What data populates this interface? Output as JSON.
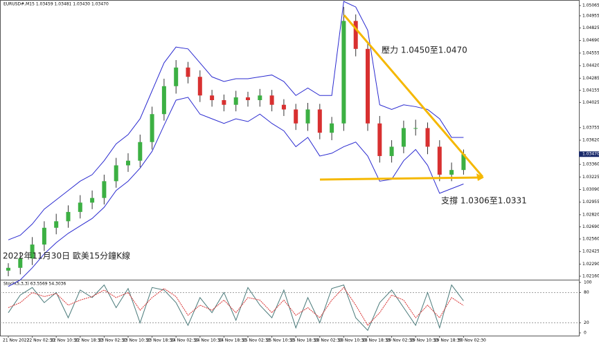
{
  "chart_data": [
    {
      "type": "candlestick",
      "title": "EURUSD#,M15 1.03459 1.03481 1.03430 1.03470",
      "caption": "2022年11月30日 歐美15分鐘K線",
      "annotations": [
        "壓力 1.0450至1.0470",
        "支撐 1.0306至1.0331"
      ],
      "categories": [
        "21 Nov 2022",
        null,
        "22 Nov 02:30",
        null,
        "22 Nov 10:30",
        null,
        "22 Nov 18:30",
        null,
        "23 Nov 02:30",
        null,
        "23 Nov 10:30",
        null,
        "23 Nov 18:30",
        null,
        "24 Nov 02:30",
        null,
        "24 Nov 10:30",
        null,
        "24 Nov 18:30",
        null,
        "25 Nov 02:30",
        null,
        "25 Nov 10:30",
        null,
        "25 Nov 18:30",
        null,
        "28 Nov 02:30",
        null,
        "28 Nov 10:30",
        null,
        "28 Nov 18:30",
        null,
        "29 Nov 02:30",
        null,
        "29 Nov 10:30",
        null,
        "29 Nov 18:30",
        null,
        "30 Nov 02:30"
      ],
      "open": [
        1.0222,
        1.0225,
        1.0235,
        1.025,
        1.0268,
        1.0275,
        1.0285,
        1.0295,
        1.03,
        1.0318,
        1.0335,
        1.034,
        1.036,
        1.039,
        1.042,
        1.044,
        1.043,
        1.041,
        1.0405,
        1.04,
        1.0408,
        1.0405,
        1.041,
        1.04,
        1.0395,
        1.038,
        1.0395,
        1.037,
        1.038,
        1.049,
        1.046,
        1.038,
        1.0345,
        1.0355,
        1.0375,
        1.0375,
        1.0355,
        1.0325,
        1.033
      ],
      "high": [
        1.023,
        1.0242,
        1.0258,
        1.0275,
        1.0283,
        1.0292,
        1.0303,
        1.0308,
        1.0325,
        1.0343,
        1.0348,
        1.0368,
        1.0398,
        1.0428,
        1.0448,
        1.0446,
        1.0437,
        1.0416,
        1.0411,
        1.0415,
        1.0414,
        1.0417,
        1.0416,
        1.0406,
        1.0401,
        1.0402,
        1.0401,
        1.0387,
        1.0505,
        1.0497,
        1.0466,
        1.0388,
        1.0362,
        1.0383,
        1.0384,
        1.0381,
        1.0362,
        1.0338,
        1.0352
      ],
      "low": [
        1.0216,
        1.0218,
        1.0228,
        1.0243,
        1.0261,
        1.0268,
        1.0278,
        1.0288,
        1.0293,
        1.0311,
        1.0328,
        1.0333,
        1.0352,
        1.0383,
        1.0412,
        1.0423,
        1.0403,
        1.0398,
        1.0393,
        1.0393,
        1.0398,
        1.0398,
        1.0393,
        1.0388,
        1.0373,
        1.0372,
        1.0363,
        1.0362,
        1.0372,
        1.0452,
        1.0372,
        1.0338,
        1.0338,
        1.0348,
        1.0367,
        1.0347,
        1.0318,
        1.0318,
        1.0325
      ],
      "close": [
        1.0225,
        1.0235,
        1.025,
        1.0268,
        1.0275,
        1.0285,
        1.0295,
        1.03,
        1.0318,
        1.0335,
        1.034,
        1.036,
        1.039,
        1.042,
        1.044,
        1.043,
        1.041,
        1.0405,
        1.04,
        1.0408,
        1.0405,
        1.041,
        1.04,
        1.0395,
        1.038,
        1.0395,
        1.037,
        1.038,
        1.049,
        1.046,
        1.038,
        1.0345,
        1.0355,
        1.0375,
        1.0375,
        1.0355,
        1.0325,
        1.033,
        1.0347
      ],
      "up_color": "#3cb043",
      "down_color": "#d83030",
      "bands": {
        "color": "#2a2ad0",
        "upper": [
          1.0255,
          1.026,
          1.0272,
          1.0288,
          1.0298,
          1.0308,
          1.0318,
          1.0325,
          1.034,
          1.0358,
          1.0368,
          1.0385,
          1.0415,
          1.0445,
          1.0462,
          1.046,
          1.0445,
          1.043,
          1.0425,
          1.0428,
          1.0428,
          1.043,
          1.0432,
          1.0425,
          1.041,
          1.0418,
          1.041,
          1.041,
          1.0511,
          1.0505,
          1.048,
          1.04,
          1.0395,
          1.04,
          1.0398,
          1.0395,
          1.0385,
          1.0365,
          1.0365
        ],
        "lower": [
          1.0205,
          1.0212,
          1.0225,
          1.024,
          1.0252,
          1.0262,
          1.027,
          1.0278,
          1.029,
          1.0308,
          1.0318,
          1.0332,
          1.035,
          1.0378,
          1.0405,
          1.0408,
          1.039,
          1.0385,
          1.038,
          1.0385,
          1.0382,
          1.039,
          1.038,
          1.0372,
          1.0355,
          1.0365,
          1.0345,
          1.0348,
          1.0355,
          1.036,
          1.0345,
          1.0318,
          1.032,
          1.034,
          1.0352,
          1.0335,
          1.0305,
          1.031,
          1.0315
        ]
      },
      "ylim": [
        1.0213,
        1.0511
      ],
      "yticks": [
        1.05065,
        1.04955,
        1.04825,
        {
          "value": 1.0469,
          "label": "1.04690"
        },
        1.04555,
        {
          "value": 1.0442,
          "label": "1.04420"
        },
        1.04285,
        1.04155,
        1.04025,
        1.03755,
        {
          "value": 1.0362,
          "label": "1.03620"
        },
        {
          "value": 1.0336,
          "label": "1.03360"
        },
        1.03225,
        {
          "value": 1.0309,
          "label": "1.03090"
        },
        1.02955,
        {
          "value": 1.0282,
          "label": "1.02820"
        },
        {
          "value": 1.0269,
          "label": "1.02690"
        },
        {
          "value": 1.0256,
          "label": "1.02560"
        },
        1.02425,
        {
          "value": 1.0229,
          "label": "1.02290"
        },
        {
          "value": 1.0216,
          "label": "1.02160"
        }
      ],
      "current_price": {
        "value": 1.0347,
        "label": "1.03470"
      }
    },
    {
      "type": "line",
      "title": "Stoch(5,3,3) 63.5569 54.3036",
      "series": [
        {
          "color": "#4a7a7a",
          "values": [
            40,
            75,
            90,
            60,
            80,
            30,
            85,
            70,
            95,
            50,
            88,
            20,
            90,
            85,
            60,
            15,
            70,
            40,
            80,
            25,
            90,
            55,
            30,
            85,
            10,
            70,
            20,
            88,
            95,
            30,
            5,
            60,
            85,
            50,
            15,
            80,
            10,
            95,
            63.5569
          ]
        },
        {
          "color": "#d83030",
          "values": [
            50,
            60,
            80,
            72,
            78,
            55,
            65,
            72,
            85,
            70,
            80,
            45,
            70,
            88,
            72,
            35,
            55,
            45,
            65,
            40,
            70,
            65,
            40,
            65,
            35,
            50,
            30,
            65,
            90,
            55,
            15,
            40,
            75,
            65,
            30,
            55,
            30,
            70,
            54.3036
          ]
        }
      ],
      "ylim": [
        0,
        100
      ],
      "yticks": [
        100,
        80,
        20,
        0
      ],
      "levels": [
        80,
        20
      ]
    }
  ]
}
